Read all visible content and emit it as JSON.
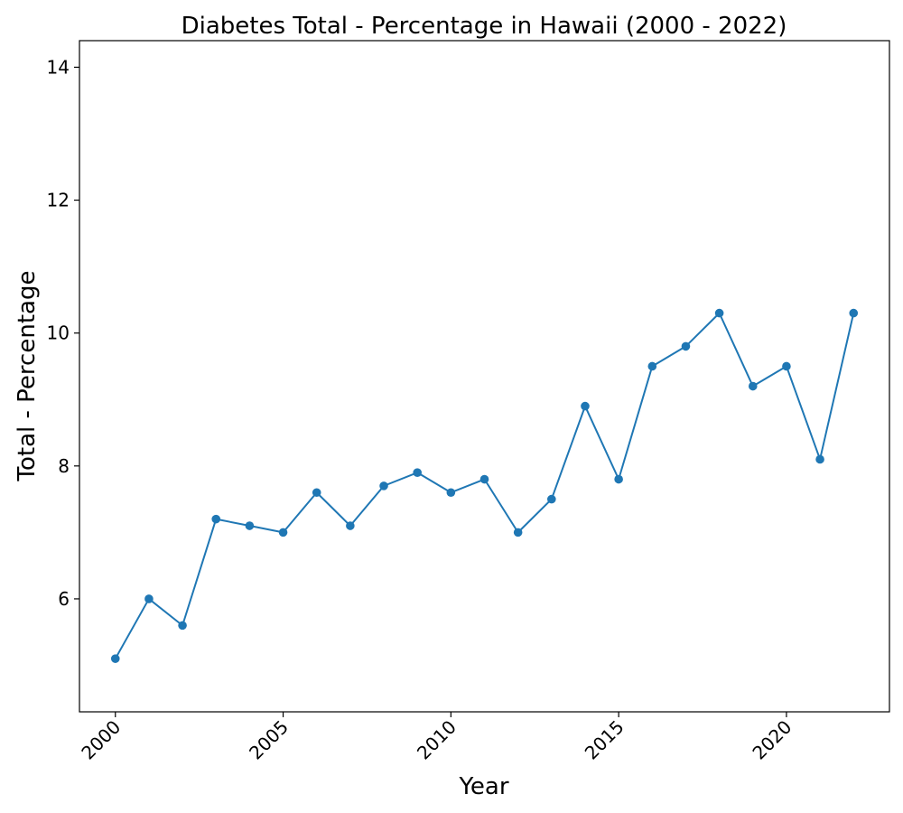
{
  "chart_data": {
    "type": "line",
    "title": "Diabetes Total - Percentage in Hawaii (2000 - 2022)",
    "xlabel": "Year",
    "ylabel": "Total - Percentage",
    "x": [
      2000,
      2001,
      2002,
      2003,
      2004,
      2005,
      2006,
      2007,
      2008,
      2009,
      2010,
      2011,
      2012,
      2013,
      2014,
      2015,
      2016,
      2017,
      2018,
      2019,
      2020,
      2021,
      2022
    ],
    "series": [
      {
        "values": [
          5.1,
          6.0,
          5.6,
          7.2,
          7.1,
          7.0,
          7.6,
          7.1,
          7.7,
          7.9,
          7.6,
          7.8,
          7.0,
          7.5,
          8.9,
          7.8,
          9.5,
          9.8,
          10.3,
          9.2,
          9.5,
          8.1,
          10.3
        ],
        "color": "#1f77b4",
        "marker": "circle"
      }
    ],
    "xlim": [
      1998.93,
      2023.07
    ],
    "ylim": [
      4.3,
      14.4
    ],
    "xticks": [
      "2000",
      "2005",
      "2010",
      "2015",
      "2020"
    ],
    "yticks": [
      "6",
      "8",
      "10",
      "12",
      "14"
    ],
    "xtick_rotation": 45,
    "grid": false,
    "legend": false
  }
}
